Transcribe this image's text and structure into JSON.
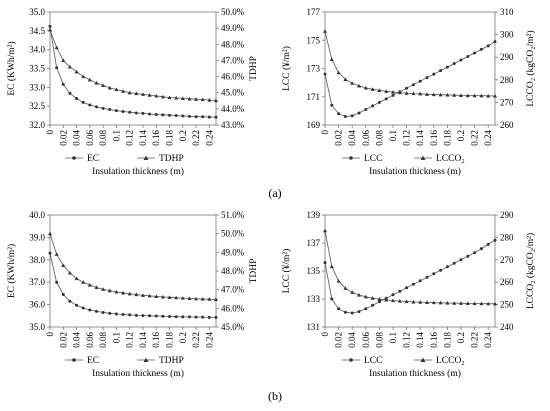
{
  "chart_data": [
    {
      "type": "line",
      "id": "a-left",
      "x": [
        0,
        0.01,
        0.02,
        0.03,
        0.04,
        0.05,
        0.06,
        0.07,
        0.08,
        0.09,
        0.1,
        0.11,
        0.12,
        0.13,
        0.14,
        0.15,
        0.16,
        0.17,
        0.18,
        0.19,
        0.2,
        0.21,
        0.22,
        0.23,
        0.24,
        0.25
      ],
      "x_ticks": [
        "0",
        "0.02",
        "0.04",
        "0.06",
        "0.08",
        "0.1",
        "0.12",
        "0.14",
        "0.16",
        "0.18",
        "0.2",
        "0.22",
        "0.24"
      ],
      "xlabel": "Insulation thickness (m)",
      "ylabel_left": "EC (KWh/m²)",
      "ylabel_right": "TDHP",
      "ylim_left": [
        32.0,
        35.0
      ],
      "yticks_left": [
        "32.0",
        "32.5",
        "33.0",
        "33.5",
        "34.0",
        "34.5",
        "35.0"
      ],
      "ylim_right": [
        43.0,
        50.0
      ],
      "yticks_right": [
        "43.0%",
        "44.0%",
        "45.0%",
        "46.0%",
        "47.0%",
        "48.0%",
        "49.0%",
        "50.0%"
      ],
      "series": [
        {
          "name": "EC",
          "marker": "circle",
          "axis": "left",
          "values": [
            34.62,
            33.52,
            33.08,
            32.84,
            32.7,
            32.6,
            32.53,
            32.48,
            32.44,
            32.41,
            32.38,
            32.36,
            32.34,
            32.32,
            32.31,
            32.29,
            32.28,
            32.27,
            32.26,
            32.25,
            32.24,
            32.23,
            32.22,
            32.22,
            32.21,
            32.21
          ]
        },
        {
          "name": "TDHP",
          "marker": "triangle",
          "axis": "right",
          "values": [
            48.9,
            47.8,
            47.0,
            46.6,
            46.3,
            46.0,
            45.8,
            45.6,
            45.45,
            45.3,
            45.2,
            45.1,
            45.0,
            44.95,
            44.9,
            44.85,
            44.8,
            44.75,
            44.7,
            44.68,
            44.65,
            44.62,
            44.6,
            44.58,
            44.55,
            44.52
          ]
        }
      ],
      "legend": "bottom"
    },
    {
      "type": "line",
      "id": "a-right",
      "x": [
        0,
        0.01,
        0.02,
        0.03,
        0.04,
        0.05,
        0.06,
        0.07,
        0.08,
        0.09,
        0.1,
        0.11,
        0.12,
        0.13,
        0.14,
        0.15,
        0.16,
        0.17,
        0.18,
        0.19,
        0.2,
        0.21,
        0.22,
        0.23,
        0.24,
        0.25
      ],
      "x_ticks": [
        "0",
        "0.02",
        "0.04",
        "0.06",
        "0.08",
        "0.1",
        "0.12",
        "0.14",
        "0.16",
        "0.18",
        "0.2",
        "0.22",
        "0.24"
      ],
      "xlabel": "Insulation thickness (m)",
      "ylabel_left": "LCC (¥/m²)",
      "ylabel_right": "LCCO₂ (kgCO₂/m²)",
      "ylim_left": [
        169,
        177
      ],
      "yticks_left": [
        "169",
        "171",
        "173",
        "175",
        "177"
      ],
      "ylim_right": [
        260,
        310
      ],
      "yticks_right": [
        "260",
        "270",
        "280",
        "290",
        "300",
        "310"
      ],
      "series": [
        {
          "name": "LCC",
          "marker": "circle",
          "axis": "left",
          "values": [
            172.6,
            170.4,
            169.8,
            169.6,
            169.65,
            169.85,
            170.1,
            170.35,
            170.6,
            170.85,
            171.1,
            171.35,
            171.6,
            171.85,
            172.1,
            172.35,
            172.6,
            172.85,
            173.1,
            173.35,
            173.6,
            173.85,
            174.1,
            174.35,
            174.6,
            174.9
          ]
        },
        {
          "name": "LCCO₂",
          "marker": "triangle",
          "axis": "right",
          "values": [
            301.5,
            289.0,
            283.2,
            280.2,
            278.5,
            277.3,
            276.4,
            275.8,
            275.3,
            274.9,
            274.6,
            274.3,
            274.1,
            273.9,
            273.8,
            273.6,
            273.5,
            273.4,
            273.3,
            273.2,
            273.1,
            273.05,
            273.0,
            272.95,
            272.9,
            272.85
          ]
        }
      ],
      "legend": "bottom"
    },
    {
      "type": "line",
      "id": "b-left",
      "x": [
        0,
        0.01,
        0.02,
        0.03,
        0.04,
        0.05,
        0.06,
        0.07,
        0.08,
        0.09,
        0.1,
        0.11,
        0.12,
        0.13,
        0.14,
        0.15,
        0.16,
        0.17,
        0.18,
        0.19,
        0.2,
        0.21,
        0.22,
        0.23,
        0.24,
        0.25
      ],
      "x_ticks": [
        "0",
        "0.02",
        "0.04",
        "0.06",
        "0.08",
        "0.1",
        "0.12",
        "0.14",
        "0.16",
        "0.18",
        "0.2",
        "0.22",
        "0.24"
      ],
      "xlabel": "Insulation thickness (m)",
      "ylabel_left": "EC (KWh/m²)",
      "ylabel_right": "TDHP",
      "ylim_left": [
        35.0,
        40.0
      ],
      "yticks_left": [
        "35.0",
        "36.0",
        "37.0",
        "38.0",
        "39.0",
        "40.0"
      ],
      "ylim_right": [
        45.0,
        51.0
      ],
      "yticks_right": [
        "45.0%",
        "46.0%",
        "47.0%",
        "48.0%",
        "49.0%",
        "50.0%",
        "51.0%"
      ],
      "series": [
        {
          "name": "EC",
          "marker": "circle",
          "axis": "left",
          "values": [
            38.3,
            37.0,
            36.45,
            36.15,
            35.97,
            35.85,
            35.76,
            35.7,
            35.65,
            35.61,
            35.58,
            35.56,
            35.54,
            35.52,
            35.51,
            35.5,
            35.49,
            35.48,
            35.47,
            35.46,
            35.45,
            35.45,
            35.44,
            35.44,
            35.43,
            35.43
          ]
        },
        {
          "name": "TDHP",
          "marker": "triangle",
          "axis": "right",
          "values": [
            50.0,
            48.9,
            48.3,
            47.9,
            47.6,
            47.4,
            47.25,
            47.12,
            47.02,
            46.95,
            46.88,
            46.83,
            46.78,
            46.74,
            46.7,
            46.67,
            46.64,
            46.61,
            46.59,
            46.57,
            46.55,
            46.53,
            46.51,
            46.5,
            46.49,
            46.48
          ]
        }
      ],
      "legend": "bottom"
    },
    {
      "type": "line",
      "id": "b-right",
      "x": [
        0,
        0.01,
        0.02,
        0.03,
        0.04,
        0.05,
        0.06,
        0.07,
        0.08,
        0.09,
        0.1,
        0.11,
        0.12,
        0.13,
        0.14,
        0.15,
        0.16,
        0.17,
        0.18,
        0.19,
        0.2,
        0.21,
        0.22,
        0.23,
        0.24,
        0.25
      ],
      "x_ticks": [
        "0",
        "0.02",
        "0.04",
        "0.06",
        "0.08",
        "0.1",
        "0.12",
        "0.14",
        "0.16",
        "0.18",
        "0.2",
        "0.22",
        "0.24"
      ],
      "xlabel": "Insulation thickness (m)",
      "ylabel_left": "LCC (¥/m²)",
      "ylabel_right": "LCCO₂ (kgCO₂/m²)",
      "ylim_left": [
        131,
        139
      ],
      "yticks_left": [
        "131",
        "133",
        "135",
        "137",
        "139"
      ],
      "ylim_right": [
        240,
        290
      ],
      "yticks_right": [
        "240",
        "250",
        "260",
        "270",
        "280",
        "290"
      ],
      "series": [
        {
          "name": "LCC",
          "marker": "circle",
          "axis": "left",
          "values": [
            135.6,
            133.0,
            132.3,
            132.05,
            132.0,
            132.1,
            132.3,
            132.55,
            132.8,
            133.05,
            133.3,
            133.55,
            133.8,
            134.05,
            134.3,
            134.55,
            134.8,
            135.05,
            135.3,
            135.55,
            135.8,
            136.05,
            136.3,
            136.6,
            136.9,
            137.2
          ]
        },
        {
          "name": "LCCO₂",
          "marker": "triangle",
          "axis": "right",
          "values": [
            283.0,
            267.0,
            260.5,
            257.3,
            255.5,
            254.3,
            253.5,
            252.9,
            252.5,
            252.1,
            251.8,
            251.6,
            251.4,
            251.2,
            251.1,
            251.0,
            250.9,
            250.8,
            250.7,
            250.65,
            250.6,
            250.55,
            250.5,
            250.45,
            250.4,
            250.35
          ]
        }
      ],
      "legend": "bottom"
    }
  ],
  "panel_labels": {
    "a": "(a)",
    "b": "(b)"
  }
}
